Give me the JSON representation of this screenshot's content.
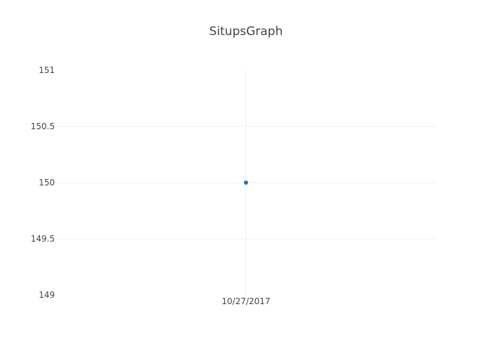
{
  "chart_data": {
    "type": "scatter",
    "title": "SitupsGraph",
    "xlabel": "",
    "ylabel": "",
    "x_ticks": [
      "10/27/2017"
    ],
    "y_ticks": [
      "149",
      "149.5",
      "150",
      "150.5",
      "151"
    ],
    "ylim": [
      149,
      151
    ],
    "grid": true,
    "series": [
      {
        "points": [
          {
            "x": "10/27/2017",
            "y": 150
          }
        ],
        "color": "#1f77b4"
      }
    ]
  }
}
